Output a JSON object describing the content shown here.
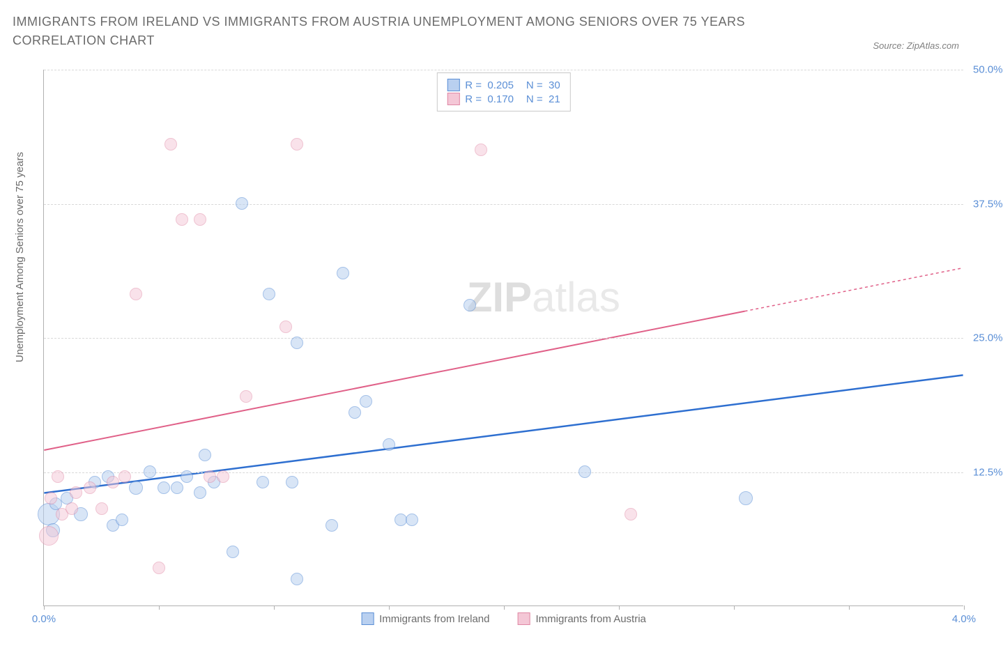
{
  "title": "IMMIGRANTS FROM IRELAND VS IMMIGRANTS FROM AUSTRIA UNEMPLOYMENT AMONG SENIORS OVER 75 YEARS CORRELATION CHART",
  "source": "Source: ZipAtlas.com",
  "ylabel": "Unemployment Among Seniors over 75 years",
  "watermark": {
    "bold": "ZIP",
    "light": "atlas"
  },
  "chart": {
    "type": "scatter",
    "xlim": [
      0.0,
      4.0
    ],
    "ylim": [
      0.0,
      50.0
    ],
    "xtick_positions": [
      0.0,
      0.5,
      1.0,
      1.5,
      2.0,
      2.5,
      3.0,
      3.5,
      4.0
    ],
    "xtick_labels_shown": {
      "0.0": "0.0%",
      "4.0": "4.0%"
    },
    "ytick_positions": [
      12.5,
      25.0,
      37.5,
      50.0
    ],
    "ytick_labels": [
      "12.5%",
      "25.0%",
      "37.5%",
      "50.0%"
    ],
    "background_color": "#ffffff",
    "grid_color": "#d8d8d8",
    "axis_color": "#b0b0b0",
    "tick_label_color": "#5b8fd6",
    "series": [
      {
        "name": "Immigrants from Ireland",
        "fill_color": "#b9d0f0",
        "stroke_color": "#5b8fd6",
        "trend_color": "#2e6fd0",
        "fill_opacity": 0.55,
        "R": "0.205",
        "N": "30",
        "trend": {
          "x1": 0.0,
          "y1": 10.5,
          "x2": 4.0,
          "y2": 21.5,
          "dashed_from_x": null
        },
        "points": [
          {
            "x": 0.02,
            "y": 8.5,
            "r": 16
          },
          {
            "x": 0.04,
            "y": 7.0,
            "r": 10
          },
          {
            "x": 0.05,
            "y": 9.5,
            "r": 9
          },
          {
            "x": 0.1,
            "y": 10.0,
            "r": 9
          },
          {
            "x": 0.16,
            "y": 8.5,
            "r": 10
          },
          {
            "x": 0.22,
            "y": 11.5,
            "r": 9
          },
          {
            "x": 0.28,
            "y": 12.0,
            "r": 9
          },
          {
            "x": 0.3,
            "y": 7.5,
            "r": 9
          },
          {
            "x": 0.34,
            "y": 8.0,
            "r": 9
          },
          {
            "x": 0.4,
            "y": 11.0,
            "r": 10
          },
          {
            "x": 0.46,
            "y": 12.5,
            "r": 9
          },
          {
            "x": 0.52,
            "y": 11.0,
            "r": 9
          },
          {
            "x": 0.58,
            "y": 11.0,
            "r": 9
          },
          {
            "x": 0.62,
            "y": 12.0,
            "r": 9
          },
          {
            "x": 0.68,
            "y": 10.5,
            "r": 9
          },
          {
            "x": 0.7,
            "y": 14.0,
            "r": 9
          },
          {
            "x": 0.74,
            "y": 11.5,
            "r": 9
          },
          {
            "x": 0.82,
            "y": 5.0,
            "r": 9
          },
          {
            "x": 0.86,
            "y": 37.5,
            "r": 9
          },
          {
            "x": 0.95,
            "y": 11.5,
            "r": 9
          },
          {
            "x": 0.98,
            "y": 29.0,
            "r": 9
          },
          {
            "x": 1.08,
            "y": 11.5,
            "r": 9
          },
          {
            "x": 1.1,
            "y": 24.5,
            "r": 9
          },
          {
            "x": 1.1,
            "y": 2.5,
            "r": 9
          },
          {
            "x": 1.25,
            "y": 7.5,
            "r": 9
          },
          {
            "x": 1.3,
            "y": 31.0,
            "r": 9
          },
          {
            "x": 1.35,
            "y": 18.0,
            "r": 9
          },
          {
            "x": 1.4,
            "y": 19.0,
            "r": 9
          },
          {
            "x": 1.5,
            "y": 15.0,
            "r": 9
          },
          {
            "x": 1.55,
            "y": 8.0,
            "r": 9
          },
          {
            "x": 1.6,
            "y": 8.0,
            "r": 9
          },
          {
            "x": 1.85,
            "y": 28.0,
            "r": 9
          },
          {
            "x": 2.35,
            "y": 12.5,
            "r": 9
          },
          {
            "x": 3.05,
            "y": 10.0,
            "r": 10
          }
        ]
      },
      {
        "name": "Immigrants from Austria",
        "fill_color": "#f4c7d6",
        "stroke_color": "#e087a4",
        "trend_color": "#e06088",
        "fill_opacity": 0.5,
        "R": "0.170",
        "N": "21",
        "trend": {
          "x1": 0.0,
          "y1": 14.5,
          "x2": 4.0,
          "y2": 31.5,
          "dashed_from_x": 3.05
        },
        "points": [
          {
            "x": 0.02,
            "y": 6.5,
            "r": 14
          },
          {
            "x": 0.03,
            "y": 10.0,
            "r": 9
          },
          {
            "x": 0.06,
            "y": 12.0,
            "r": 9
          },
          {
            "x": 0.08,
            "y": 8.5,
            "r": 9
          },
          {
            "x": 0.12,
            "y": 9.0,
            "r": 9
          },
          {
            "x": 0.14,
            "y": 10.5,
            "r": 9
          },
          {
            "x": 0.2,
            "y": 11.0,
            "r": 9
          },
          {
            "x": 0.25,
            "y": 9.0,
            "r": 9
          },
          {
            "x": 0.3,
            "y": 11.5,
            "r": 9
          },
          {
            "x": 0.35,
            "y": 12.0,
            "r": 9
          },
          {
            "x": 0.4,
            "y": 29.0,
            "r": 9
          },
          {
            "x": 0.5,
            "y": 3.5,
            "r": 9
          },
          {
            "x": 0.55,
            "y": 43.0,
            "r": 9
          },
          {
            "x": 0.6,
            "y": 36.0,
            "r": 9
          },
          {
            "x": 0.68,
            "y": 36.0,
            "r": 9
          },
          {
            "x": 0.72,
            "y": 12.0,
            "r": 9
          },
          {
            "x": 0.78,
            "y": 12.0,
            "r": 9
          },
          {
            "x": 0.88,
            "y": 19.5,
            "r": 9
          },
          {
            "x": 1.05,
            "y": 26.0,
            "r": 9
          },
          {
            "x": 1.1,
            "y": 43.0,
            "r": 9
          },
          {
            "x": 1.9,
            "y": 42.5,
            "r": 9
          },
          {
            "x": 2.55,
            "y": 8.5,
            "r": 9
          }
        ]
      }
    ]
  },
  "legend_bottom": [
    {
      "label": "Immigrants from Ireland",
      "fill": "#b9d0f0",
      "stroke": "#5b8fd6"
    },
    {
      "label": "Immigrants from Austria",
      "fill": "#f4c7d6",
      "stroke": "#e087a4"
    }
  ]
}
